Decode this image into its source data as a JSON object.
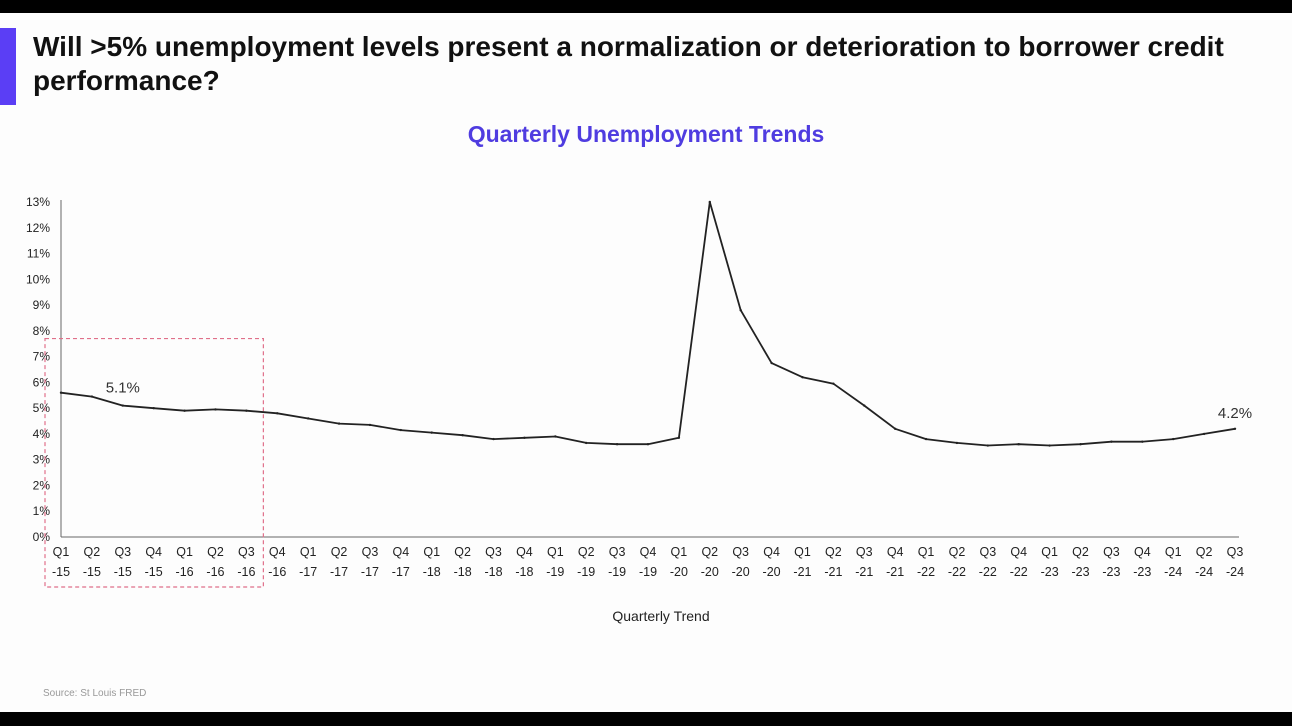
{
  "slide": {
    "title": "Will >5% unemployment levels present a normalization or deterioration to borrower credit performance?",
    "accent_color": "#5b3ef5",
    "source": "Source: St Louis FRED"
  },
  "chart_data": {
    "type": "line",
    "title": "Quarterly Unemployment Trends",
    "title_color": "#4f3ce0",
    "xlabel": "Quarterly Trend",
    "ylabel": "",
    "ylim": [
      0,
      13
    ],
    "yticks": [
      "0%",
      "1%",
      "2%",
      "3%",
      "4%",
      "5%",
      "6%",
      "7%",
      "8%",
      "9%",
      "10%",
      "11%",
      "12%",
      "13%"
    ],
    "categories": [
      [
        "Q1",
        "-15"
      ],
      [
        "Q2",
        "-15"
      ],
      [
        "Q3",
        "-15"
      ],
      [
        "Q4",
        "-15"
      ],
      [
        "Q1",
        "-16"
      ],
      [
        "Q2",
        "-16"
      ],
      [
        "Q3",
        "-16"
      ],
      [
        "Q4",
        "-16"
      ],
      [
        "Q1",
        "-17"
      ],
      [
        "Q2",
        "-17"
      ],
      [
        "Q3",
        "-17"
      ],
      [
        "Q4",
        "-17"
      ],
      [
        "Q1",
        "-18"
      ],
      [
        "Q2",
        "-18"
      ],
      [
        "Q3",
        "-18"
      ],
      [
        "Q4",
        "-18"
      ],
      [
        "Q1",
        "-19"
      ],
      [
        "Q2",
        "-19"
      ],
      [
        "Q3",
        "-19"
      ],
      [
        "Q4",
        "-19"
      ],
      [
        "Q1",
        "-20"
      ],
      [
        "Q2",
        "-20"
      ],
      [
        "Q3",
        "-20"
      ],
      [
        "Q4",
        "-20"
      ],
      [
        "Q1",
        "-21"
      ],
      [
        "Q2",
        "-21"
      ],
      [
        "Q3",
        "-21"
      ],
      [
        "Q4",
        "-21"
      ],
      [
        "Q1",
        "-22"
      ],
      [
        "Q2",
        "-22"
      ],
      [
        "Q3",
        "-22"
      ],
      [
        "Q4",
        "-22"
      ],
      [
        "Q1",
        "-23"
      ],
      [
        "Q2",
        "-23"
      ],
      [
        "Q3",
        "-23"
      ],
      [
        "Q4",
        "-23"
      ],
      [
        "Q1",
        "-24"
      ],
      [
        "Q2",
        "-24"
      ],
      [
        "Q3",
        "-24"
      ]
    ],
    "values": [
      5.6,
      5.45,
      5.1,
      5.0,
      4.9,
      4.95,
      4.9,
      4.8,
      4.6,
      4.4,
      4.35,
      4.15,
      4.05,
      3.95,
      3.8,
      3.85,
      3.9,
      3.65,
      3.6,
      3.6,
      3.85,
      13.0,
      8.8,
      6.75,
      6.2,
      5.95,
      5.1,
      4.2,
      3.8,
      3.65,
      3.55,
      3.6,
      3.55,
      3.6,
      3.7,
      3.7,
      3.8,
      4.0,
      4.2
    ],
    "annotations": [
      {
        "index": 2,
        "text": "5.1%"
      },
      {
        "index": 38,
        "text": "4.2%"
      }
    ],
    "highlight": {
      "from": "Q1 -15",
      "to": "Q3 -16",
      "style": "dashed-box"
    },
    "line_color": "#222222",
    "highlight_color": "#e0708a",
    "grid": false,
    "legend": "none"
  }
}
